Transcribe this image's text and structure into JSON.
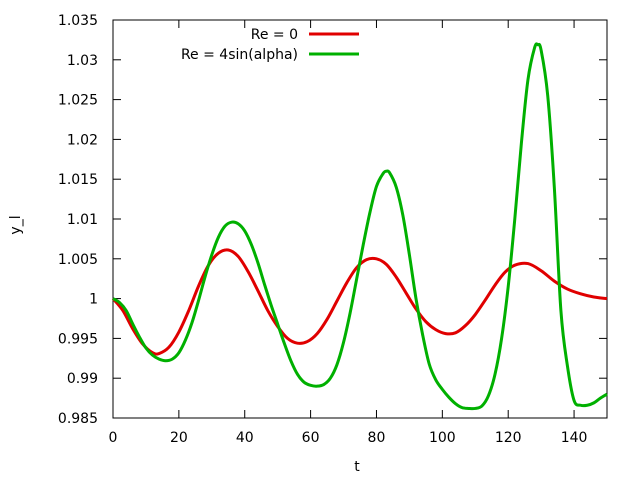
{
  "chart_data": {
    "type": "line",
    "title": "",
    "xlabel": "t",
    "ylabel": "y_l",
    "xlim": [
      0,
      150
    ],
    "ylim": [
      0.985,
      1.035
    ],
    "xticks": [
      0,
      20,
      40,
      60,
      80,
      100,
      120,
      140
    ],
    "xtick_labels": [
      "0",
      "20",
      "40",
      "60",
      "80",
      "100",
      "120",
      "140"
    ],
    "yticks": [
      0.985,
      0.99,
      0.995,
      1,
      1.005,
      1.01,
      1.015,
      1.02,
      1.025,
      1.03,
      1.035
    ],
    "ytick_labels": [
      "0.985",
      "0.99",
      "0.995",
      "1",
      "1.005",
      "1.01",
      "1.015",
      "1.02",
      "1.025",
      "1.03",
      "1.035"
    ],
    "grid": false,
    "legend": "top-center",
    "series": [
      {
        "name": "Re = 0",
        "color": "#e00000",
        "x": [
          0,
          3,
          6,
          9,
          12,
          14,
          17,
          20,
          23,
          26,
          29,
          32,
          35,
          38,
          41,
          44,
          47,
          50,
          53,
          56,
          59,
          62,
          65,
          68,
          71,
          74,
          77,
          80,
          83,
          86,
          89,
          92,
          95,
          98,
          101,
          104,
          107,
          110,
          113,
          116,
          119,
          122,
          126,
          130,
          134,
          138,
          142,
          146,
          150
        ],
        "y": [
          1.0,
          0.9985,
          0.9962,
          0.9943,
          0.9932,
          0.9931,
          0.9939,
          0.9958,
          0.9985,
          1.0016,
          1.0042,
          1.0057,
          1.0061,
          1.0053,
          1.0034,
          1.001,
          0.9985,
          0.9965,
          0.995,
          0.9944,
          0.9946,
          0.9956,
          0.9974,
          0.9997,
          1.002,
          1.0039,
          1.0049,
          1.005,
          1.0043,
          1.0027,
          1.0007,
          0.9987,
          0.9971,
          0.9961,
          0.9956,
          0.9957,
          0.9966,
          0.998,
          0.9998,
          1.0017,
          1.0033,
          1.0042,
          1.0044,
          1.0035,
          1.0022,
          1.0012,
          1.0006,
          1.0002,
          1.0
        ]
      },
      {
        "name": "Re = 4sin(alpha)",
        "color": "#00b000",
        "x": [
          0,
          2,
          4,
          6,
          8,
          10,
          12,
          14,
          16,
          18,
          20,
          22,
          24,
          26,
          28,
          30,
          32,
          34,
          36,
          38,
          40,
          42,
          44,
          46,
          48,
          50,
          52,
          54,
          56,
          58,
          60,
          62,
          64,
          66,
          68,
          70,
          72,
          74,
          76,
          78,
          80,
          82,
          83,
          84,
          86,
          88,
          90,
          92,
          94,
          96,
          98,
          100,
          102,
          104,
          106,
          108,
          110,
          112,
          114,
          116,
          118,
          120,
          122,
          124,
          126,
          128,
          129,
          130,
          132,
          134,
          136,
          138,
          140,
          142,
          144,
          146,
          148,
          150
        ],
        "y": [
          1.0,
          0.9995,
          0.9985,
          0.9968,
          0.9952,
          0.9938,
          0.9929,
          0.9924,
          0.9922,
          0.9924,
          0.9932,
          0.9948,
          0.997,
          0.9998,
          1.0028,
          1.0055,
          1.0077,
          1.0091,
          1.0096,
          1.0094,
          1.0085,
          1.0068,
          1.0045,
          1.0018,
          0.9992,
          0.9968,
          0.9944,
          0.9922,
          0.9905,
          0.9895,
          0.9891,
          0.989,
          0.9892,
          0.99,
          0.9917,
          0.9945,
          0.9982,
          1.0025,
          1.0068,
          1.0108,
          1.0141,
          1.0157,
          1.016,
          1.0158,
          1.014,
          1.0105,
          1.0055,
          1.0,
          0.9955,
          0.9918,
          0.9898,
          0.9886,
          0.9876,
          0.9868,
          0.9863,
          0.9862,
          0.9862,
          0.9865,
          0.9878,
          0.9905,
          0.995,
          1.0015,
          1.01,
          1.0195,
          1.0275,
          1.0315,
          1.0319,
          1.0312,
          1.0255,
          1.014,
          0.9985,
          0.9915,
          0.9872,
          0.9866,
          0.9866,
          0.9869,
          0.9875,
          0.988
        ]
      }
    ]
  }
}
